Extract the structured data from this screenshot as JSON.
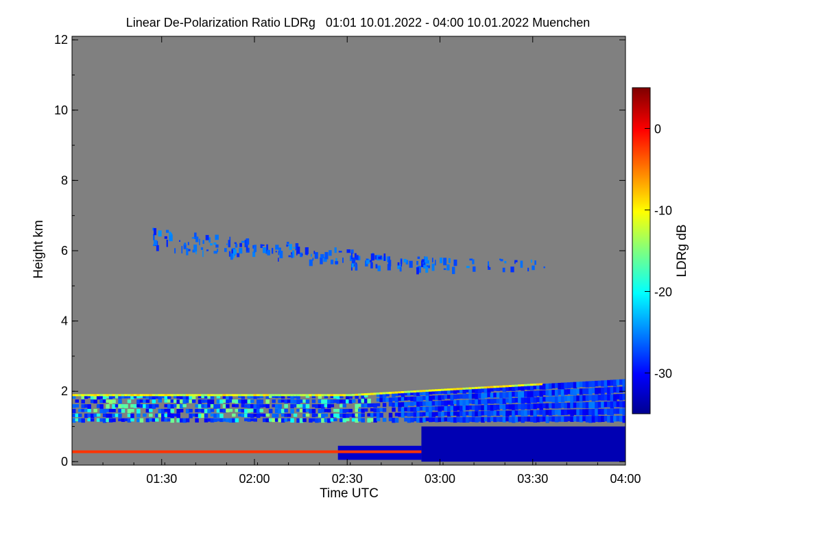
{
  "chart_data": {
    "type": "heatmap",
    "title": "Linear De-Polarization Ratio LDRg   01:01 10.01.2022 - 04:00 10.01.2022 Muenchen",
    "xlabel": "Time UTC",
    "ylabel": "Height km",
    "colorbar_label": "LDRg dB",
    "x_range_hours": [
      1.0167,
      4.0
    ],
    "x_ticks": [
      {
        "value": 1.5,
        "label": "01:30"
      },
      {
        "value": 2.0,
        "label": "02:00"
      },
      {
        "value": 2.5,
        "label": "02:30"
      },
      {
        "value": 3.0,
        "label": "03:00"
      },
      {
        "value": 3.5,
        "label": "03:30"
      },
      {
        "value": 4.0,
        "label": "04:00"
      }
    ],
    "y_range_km": [
      -0.1,
      12.1
    ],
    "y_ticks": [
      {
        "value": 0,
        "label": "0"
      },
      {
        "value": 2,
        "label": "2"
      },
      {
        "value": 4,
        "label": "4"
      },
      {
        "value": 6,
        "label": "6"
      },
      {
        "value": 8,
        "label": "8"
      },
      {
        "value": 10,
        "label": "10"
      },
      {
        "value": 12,
        "label": "12"
      }
    ],
    "colorbar_range_db": [
      -35,
      5
    ],
    "colorbar_ticks": [
      {
        "value": 0,
        "label": "0"
      },
      {
        "value": -10,
        "label": "-10"
      },
      {
        "value": -20,
        "label": "-20"
      },
      {
        "value": -30,
        "label": "-30"
      }
    ],
    "regions": [
      {
        "name": "ice-cloud-layer",
        "t_start": 1.45,
        "t_end": 3.6,
        "h_base_start": 6.1,
        "h_base_end": 5.5,
        "thickness_km": 0.6,
        "ldr_db": -27
      },
      {
        "name": "boundary-layer-aerosol",
        "t_start": 1.0167,
        "t_end": 4.0,
        "h_base": 1.1,
        "h_top_start": 1.9,
        "h_top_end": 2.35,
        "ldr_db": -28
      },
      {
        "name": "low-cloud-fill",
        "t_start": 2.9,
        "t_end": 4.0,
        "h_base": 0.0,
        "h_top": 1.0,
        "ldr_db": -33
      },
      {
        "name": "surface-layer",
        "t_start": 1.0167,
        "t_end": 2.9,
        "h": 0.28,
        "ldr_db": -2
      }
    ]
  }
}
